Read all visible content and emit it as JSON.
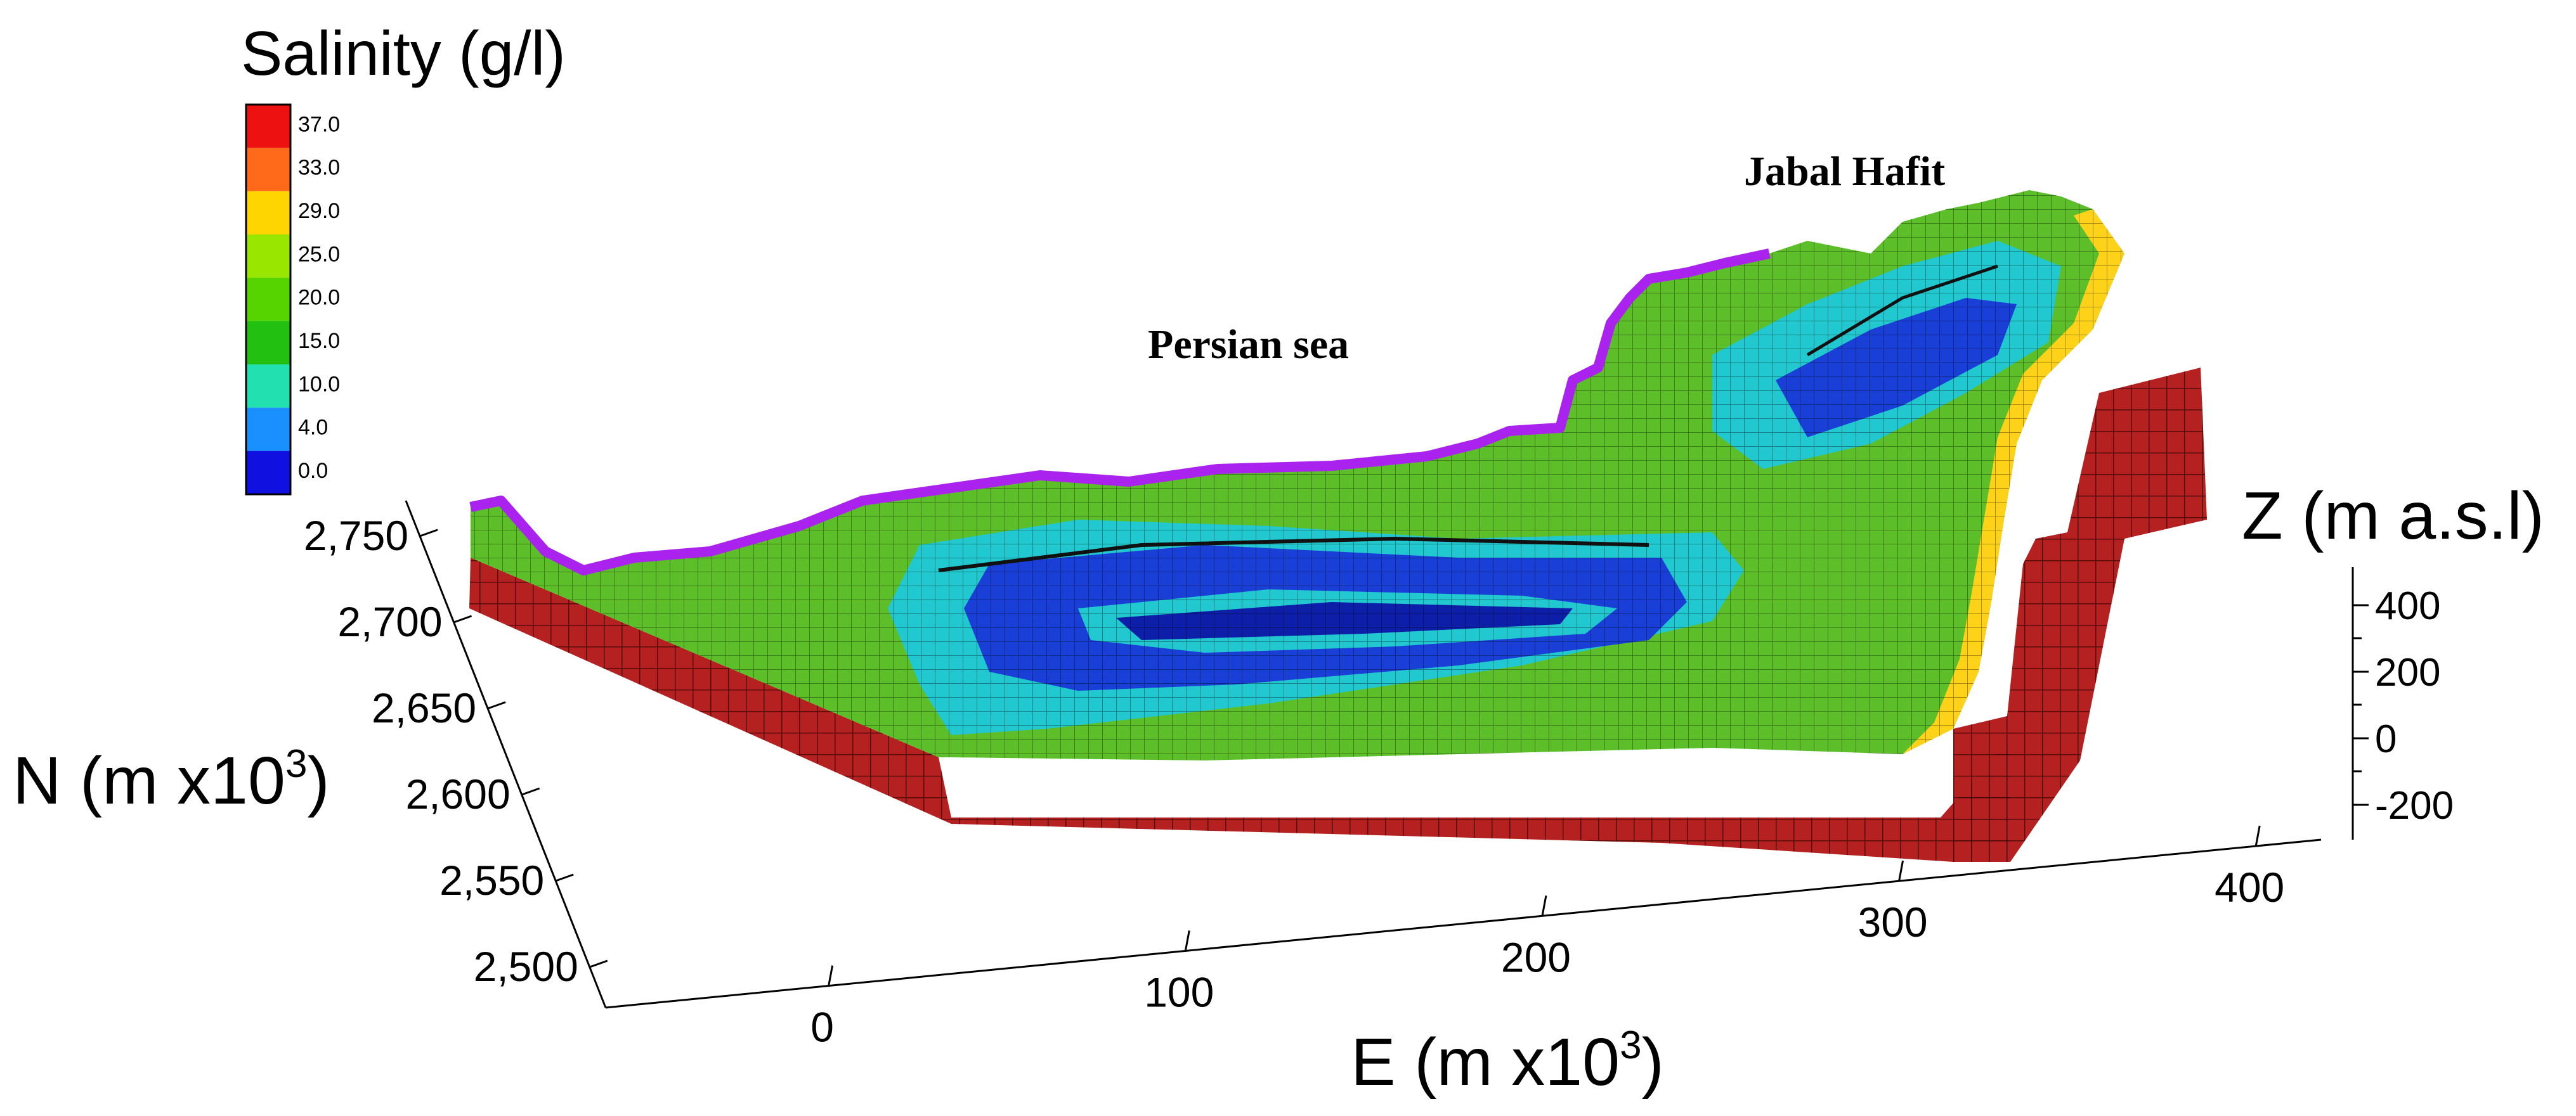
{
  "legend": {
    "title": "Salinity (g/l)",
    "entries": [
      {
        "label": "37.0",
        "color": "#ee1111"
      },
      {
        "label": "33.0",
        "color": "#ff6a1a"
      },
      {
        "label": "29.0",
        "color": "#ffd500"
      },
      {
        "label": "25.0",
        "color": "#99e600"
      },
      {
        "label": "20.0",
        "color": "#55d400"
      },
      {
        "label": "15.0",
        "color": "#22c010"
      },
      {
        "label": "10.0",
        "color": "#22e0b0"
      },
      {
        "label": "4.0",
        "color": "#1a90ff"
      },
      {
        "label": "0.0",
        "color": "#1010e0"
      }
    ]
  },
  "annotations": {
    "mountain": "Jabal Hafit",
    "sea": "Persian sea"
  },
  "axes": {
    "n": {
      "label": "N (m x10",
      "sup": "3",
      "close": ")",
      "ticks": [
        "2,750",
        "2,700",
        "2,650",
        "2,600",
        "2,550",
        "2,500"
      ]
    },
    "e": {
      "label": "E (m x10",
      "sup": "3",
      "close": ")",
      "ticks": [
        "0",
        "100",
        "200",
        "300",
        "400"
      ]
    },
    "z": {
      "label": "Z (m a.s.l)",
      "ticks": [
        "400",
        "200",
        "0",
        "-200"
      ]
    }
  },
  "colors": {
    "base": "#b52121",
    "coast": "#aa22ee",
    "plain": "#5cbf2a",
    "low": "#1a3fd6",
    "mid": "#22c8d0",
    "rim": "#ffd21a"
  }
}
